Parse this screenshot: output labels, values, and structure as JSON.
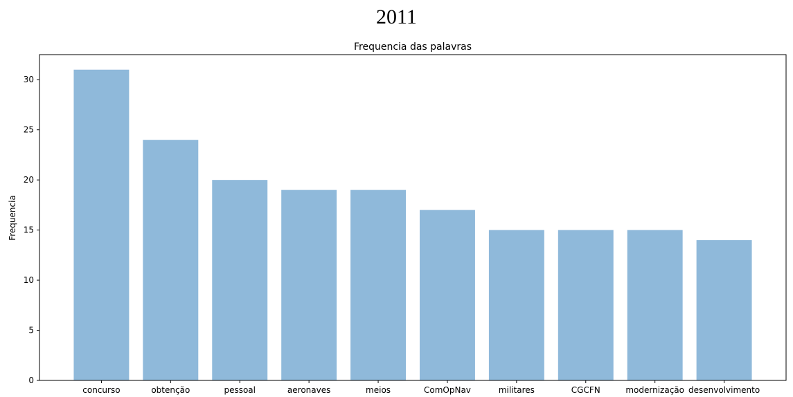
{
  "heading": "2011",
  "chart_data": {
    "type": "bar",
    "title": "Frequencia das palavras",
    "xlabel": "",
    "ylabel": "Frequencia",
    "categories": [
      "concurso",
      "obtenção",
      "pessoal",
      "aeronaves",
      "meios",
      "ComOpNav",
      "militares",
      "CGCFN",
      "modernização",
      "desenvolvimento"
    ],
    "values": [
      31,
      24,
      20,
      19,
      19,
      17,
      15,
      15,
      15,
      14
    ],
    "ylim": [
      0,
      32.5
    ],
    "yticks": [
      0,
      5,
      10,
      15,
      20,
      25,
      30
    ],
    "grid": false,
    "bar_color": "#8fb9da"
  }
}
